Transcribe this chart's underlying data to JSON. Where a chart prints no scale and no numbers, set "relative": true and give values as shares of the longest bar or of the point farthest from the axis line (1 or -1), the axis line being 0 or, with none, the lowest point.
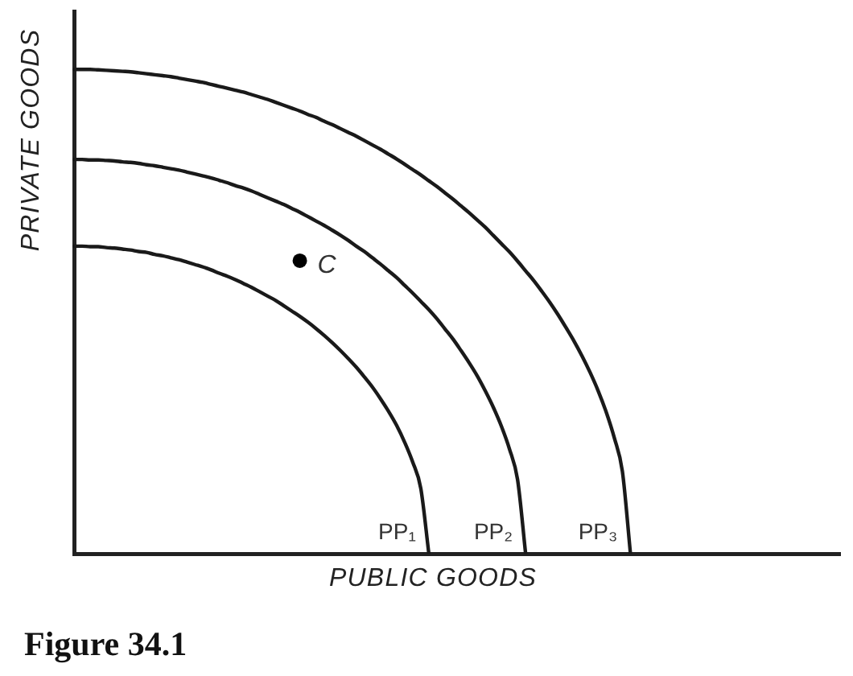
{
  "chart_data": {
    "type": "line",
    "title": "Figure 34.1",
    "xlabel": "PUBLIC GOODS",
    "ylabel": "PRIVATE GOODS",
    "relative": true,
    "legend": false,
    "marker": "none",
    "line_style": "solid",
    "categories": [
      null,
      null,
      null,
      null,
      null,
      null,
      null,
      null,
      null,
      null,
      null,
      null,
      null,
      null,
      null,
      null,
      null,
      null,
      null,
      null,
      null,
      null,
      null,
      null,
      null,
      null,
      null,
      null,
      null,
      null,
      null,
      null,
      null,
      null,
      null,
      null,
      null,
      null,
      null,
      null,
      null,
      null,
      null,
      null,
      null,
      null,
      null,
      null,
      null,
      null,
      null,
      null,
      null,
      null,
      null,
      null,
      null,
      null,
      null,
      null,
      null,
      null,
      null,
      null,
      null,
      null,
      null,
      null,
      null,
      null,
      null,
      null,
      null,
      null,
      null,
      null,
      null,
      null,
      null,
      null,
      null,
      null,
      null,
      null,
      null,
      null,
      null,
      null,
      null,
      null,
      null,
      null,
      null,
      null,
      null,
      null
    ],
    "series": [
      {
        "name": "PP₁",
        "color": "#1a1a1a",
        "values": [
          0.635,
          0.635,
          0.634,
          0.634,
          0.632,
          0.631,
          0.629,
          0.627,
          0.624,
          0.622,
          0.618,
          0.615,
          0.611,
          0.607,
          0.602,
          0.597,
          0.592,
          0.586,
          0.579,
          0.573,
          0.566,
          0.558,
          0.55,
          0.541,
          0.532,
          0.523,
          0.512,
          0.501,
          0.49,
          0.478,
          0.465,
          0.451,
          0.436,
          0.42,
          0.403,
          0.385,
          0.365,
          0.344,
          0.32,
          0.294,
          0.265,
          0.23,
          0.189,
          0.135,
          0,
          null,
          null,
          null,
          null,
          null,
          null,
          null,
          null,
          null,
          null,
          null,
          null,
          null,
          null,
          null,
          null,
          null,
          null,
          null,
          null,
          null,
          null,
          null,
          null,
          null,
          null,
          null,
          null,
          null,
          null,
          null,
          null,
          null,
          null,
          null,
          null,
          null,
          null,
          null,
          null,
          null,
          null,
          null,
          null,
          null,
          null,
          null,
          null,
          null,
          null,
          null
        ]
      },
      {
        "name": "PP₂",
        "color": "#1a1a1a",
        "values": [
          0.814,
          0.814,
          0.813,
          0.813,
          0.812,
          0.811,
          0.809,
          0.808,
          0.806,
          0.803,
          0.801,
          0.798,
          0.795,
          0.792,
          0.788,
          0.784,
          0.78,
          0.776,
          0.771,
          0.766,
          0.76,
          0.755,
          0.749,
          0.742,
          0.735,
          0.728,
          0.721,
          0.713,
          0.705,
          0.696,
          0.687,
          0.678,
          0.668,
          0.658,
          0.647,
          0.635,
          0.624,
          0.611,
          0.598,
          0.584,
          0.57,
          0.554,
          0.538,
          0.521,
          0.504,
          0.485,
          0.464,
          0.443,
          0.419,
          0.394,
          0.367,
          0.336,
          0.302,
          0.263,
          0.216,
          0.153,
          0,
          null,
          null,
          null,
          null,
          null,
          null,
          null,
          null,
          null,
          null,
          null,
          null,
          null,
          null,
          null,
          null,
          null,
          null,
          null,
          null,
          null,
          null,
          null,
          null,
          null,
          null,
          null,
          null,
          null,
          null,
          null,
          null,
          null,
          null,
          null,
          null,
          null,
          null,
          null
        ]
      },
      {
        "name": "PP₃",
        "color": "#1a1a1a",
        "values": [
          1,
          1,
          1,
          0.999,
          0.998,
          0.997,
          0.996,
          0.995,
          0.993,
          0.991,
          0.989,
          0.987,
          0.985,
          0.982,
          0.979,
          0.976,
          0.973,
          0.969,
          0.965,
          0.961,
          0.957,
          0.953,
          0.948,
          0.943,
          0.938,
          0.932,
          0.926,
          0.92,
          0.914,
          0.907,
          0.901,
          0.893,
          0.886,
          0.878,
          0.87,
          0.862,
          0.853,
          0.844,
          0.835,
          0.825,
          0.815,
          0.804,
          0.793,
          0.782,
          0.77,
          0.758,
          0.745,
          0.732,
          0.718,
          0.704,
          0.689,
          0.674,
          0.657,
          0.64,
          0.623,
          0.604,
          0.584,
          0.564,
          0.542,
          0.519,
          0.494,
          0.467,
          0.439,
          0.408,
          0.374,
          0.336,
          0.292,
          0.239,
          0.17,
          0,
          null,
          null,
          null,
          null,
          null,
          null,
          null,
          null,
          null,
          null,
          null,
          null,
          null,
          null,
          null,
          null,
          null,
          null,
          null,
          null,
          null,
          null,
          null,
          null,
          null,
          null
        ]
      },
      {
        "name": "C",
        "marker": "circle",
        "color": "#000000",
        "values": [
          null,
          null,
          null,
          null,
          null,
          null,
          null,
          null,
          null,
          null,
          null,
          null,
          null,
          null,
          null,
          null,
          null,
          null,
          null,
          null,
          null,
          null,
          null,
          null,
          null,
          null,
          null,
          null,
          0.605,
          null,
          null,
          null,
          null,
          null,
          null,
          null,
          null,
          null,
          null,
          null,
          null,
          null,
          null,
          null,
          null,
          null,
          null,
          null,
          null,
          null,
          null,
          null,
          null,
          null,
          null,
          null,
          null,
          null,
          null,
          null,
          null,
          null,
          null,
          null,
          null,
          null,
          null,
          null,
          null,
          null,
          null,
          null,
          null,
          null,
          null,
          null,
          null,
          null,
          null,
          null,
          null,
          null,
          null,
          null,
          null,
          null,
          null,
          null,
          null,
          null,
          null,
          null,
          null,
          null,
          null,
          null
        ]
      }
    ]
  }
}
